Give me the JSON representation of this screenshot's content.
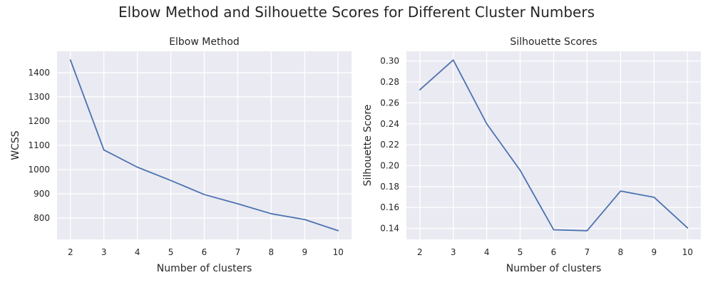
{
  "figure": {
    "suptitle": "Elbow Method and Silhouette Scores for Different Cluster Numbers"
  },
  "chart_data": [
    {
      "type": "line",
      "title": "Elbow Method",
      "xlabel": "Number of clusters",
      "ylabel": "WCSS",
      "x": [
        2,
        3,
        4,
        5,
        6,
        7,
        8,
        9,
        10
      ],
      "series": [
        {
          "values": [
            1452,
            1081,
            1010,
            955,
            897,
            859,
            818,
            794,
            748
          ]
        }
      ],
      "xticks": [
        2,
        3,
        4,
        5,
        6,
        7,
        8,
        9,
        10
      ],
      "xtick_labels": [
        "2",
        "3",
        "4",
        "5",
        "6",
        "7",
        "8",
        "9",
        "10"
      ],
      "yticks": [
        800,
        900,
        1000,
        1100,
        1200,
        1300,
        1400
      ],
      "ytick_labels": [
        "800",
        "900",
        "1000",
        "1100",
        "1200",
        "1300",
        "1400"
      ],
      "xlim": [
        1.6,
        10.4
      ],
      "ylim": [
        712,
        1488
      ],
      "grid": true,
      "line_color": "#4c72b0",
      "facecolor": "#eaeaf2"
    },
    {
      "type": "line",
      "title": "Silhouette Scores",
      "xlabel": "Number of clusters",
      "ylabel": "Silhouette Score",
      "x": [
        2,
        3,
        4,
        5,
        6,
        7,
        8,
        9,
        10
      ],
      "series": [
        {
          "values": [
            0.2725,
            0.301,
            0.24,
            0.1955,
            0.1387,
            0.1378,
            0.1757,
            0.1698,
            0.1405
          ]
        }
      ],
      "xticks": [
        2,
        3,
        4,
        5,
        6,
        7,
        8,
        9,
        10
      ],
      "xtick_labels": [
        "2",
        "3",
        "4",
        "5",
        "6",
        "7",
        "8",
        "9",
        "10"
      ],
      "yticks": [
        0.14,
        0.16,
        0.18,
        0.2,
        0.22,
        0.24,
        0.26,
        0.28,
        0.3
      ],
      "ytick_labels": [
        "0.14",
        "0.16",
        "0.18",
        "0.20",
        "0.22",
        "0.24",
        "0.26",
        "0.28",
        "0.30"
      ],
      "xlim": [
        1.6,
        10.4
      ],
      "ylim": [
        0.1295,
        0.3093
      ],
      "grid": true,
      "line_color": "#4c72b0",
      "facecolor": "#eaeaf2"
    }
  ]
}
